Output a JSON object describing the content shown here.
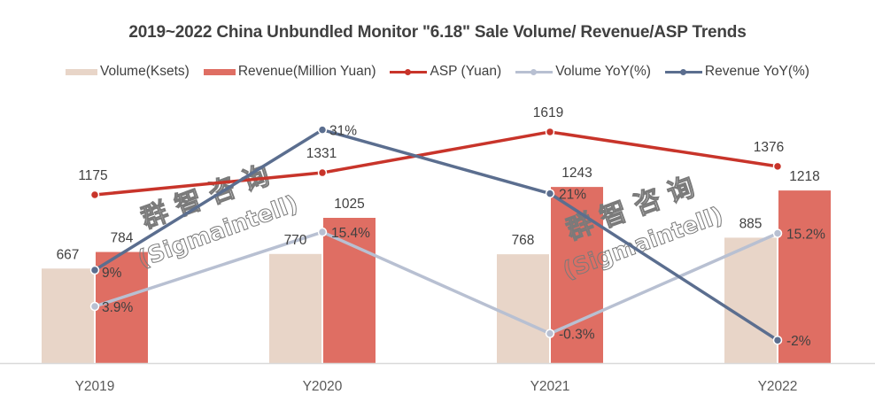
{
  "chart_data": {
    "type": "bar",
    "title": "2019~2022 China Unbundled Monitor \"6.18\" Sale Volume/ Revenue/ASP Trends",
    "categories": [
      "Y2019",
      "Y2020",
      "Y2021",
      "Y2022"
    ],
    "series": [
      {
        "name": "Volume(Ksets)",
        "kind": "bar",
        "color": "#E8D5C8",
        "values": [
          667,
          770,
          768,
          885
        ],
        "labels": [
          "667",
          "770",
          "768",
          "885"
        ]
      },
      {
        "name": "Revenue(Million Yuan)",
        "kind": "bar",
        "color": "#DF6E63",
        "values": [
          784,
          1025,
          1243,
          1218
        ],
        "labels": [
          "784",
          "1025",
          "1243",
          "1218"
        ]
      },
      {
        "name": "ASP (Yuan)",
        "kind": "line",
        "color": "#C8342A",
        "values": [
          1175,
          1331,
          1619,
          1376
        ],
        "labels": [
          "1175",
          "1331",
          "1619",
          "1376"
        ]
      },
      {
        "name": "Volume YoY(%)",
        "kind": "line",
        "color": "#B8C0D2",
        "values": [
          3.9,
          15.4,
          -0.3,
          15.2
        ],
        "labels": [
          "3.9%",
          "15.4%",
          "-0.3%",
          "15.2%"
        ]
      },
      {
        "name": "Revenue YoY(%)",
        "kind": "line",
        "color": "#5B6E8F",
        "values": [
          9,
          31,
          21,
          -2
        ],
        "labels": [
          "9%",
          "31%",
          "21%",
          "-2%"
        ]
      }
    ],
    "xlabel": "",
    "ylabel": "",
    "grid": false,
    "legend": "top-center",
    "watermark": {
      "line1": "群 智 咨 询",
      "line2": "(Sigmaintell)"
    }
  }
}
